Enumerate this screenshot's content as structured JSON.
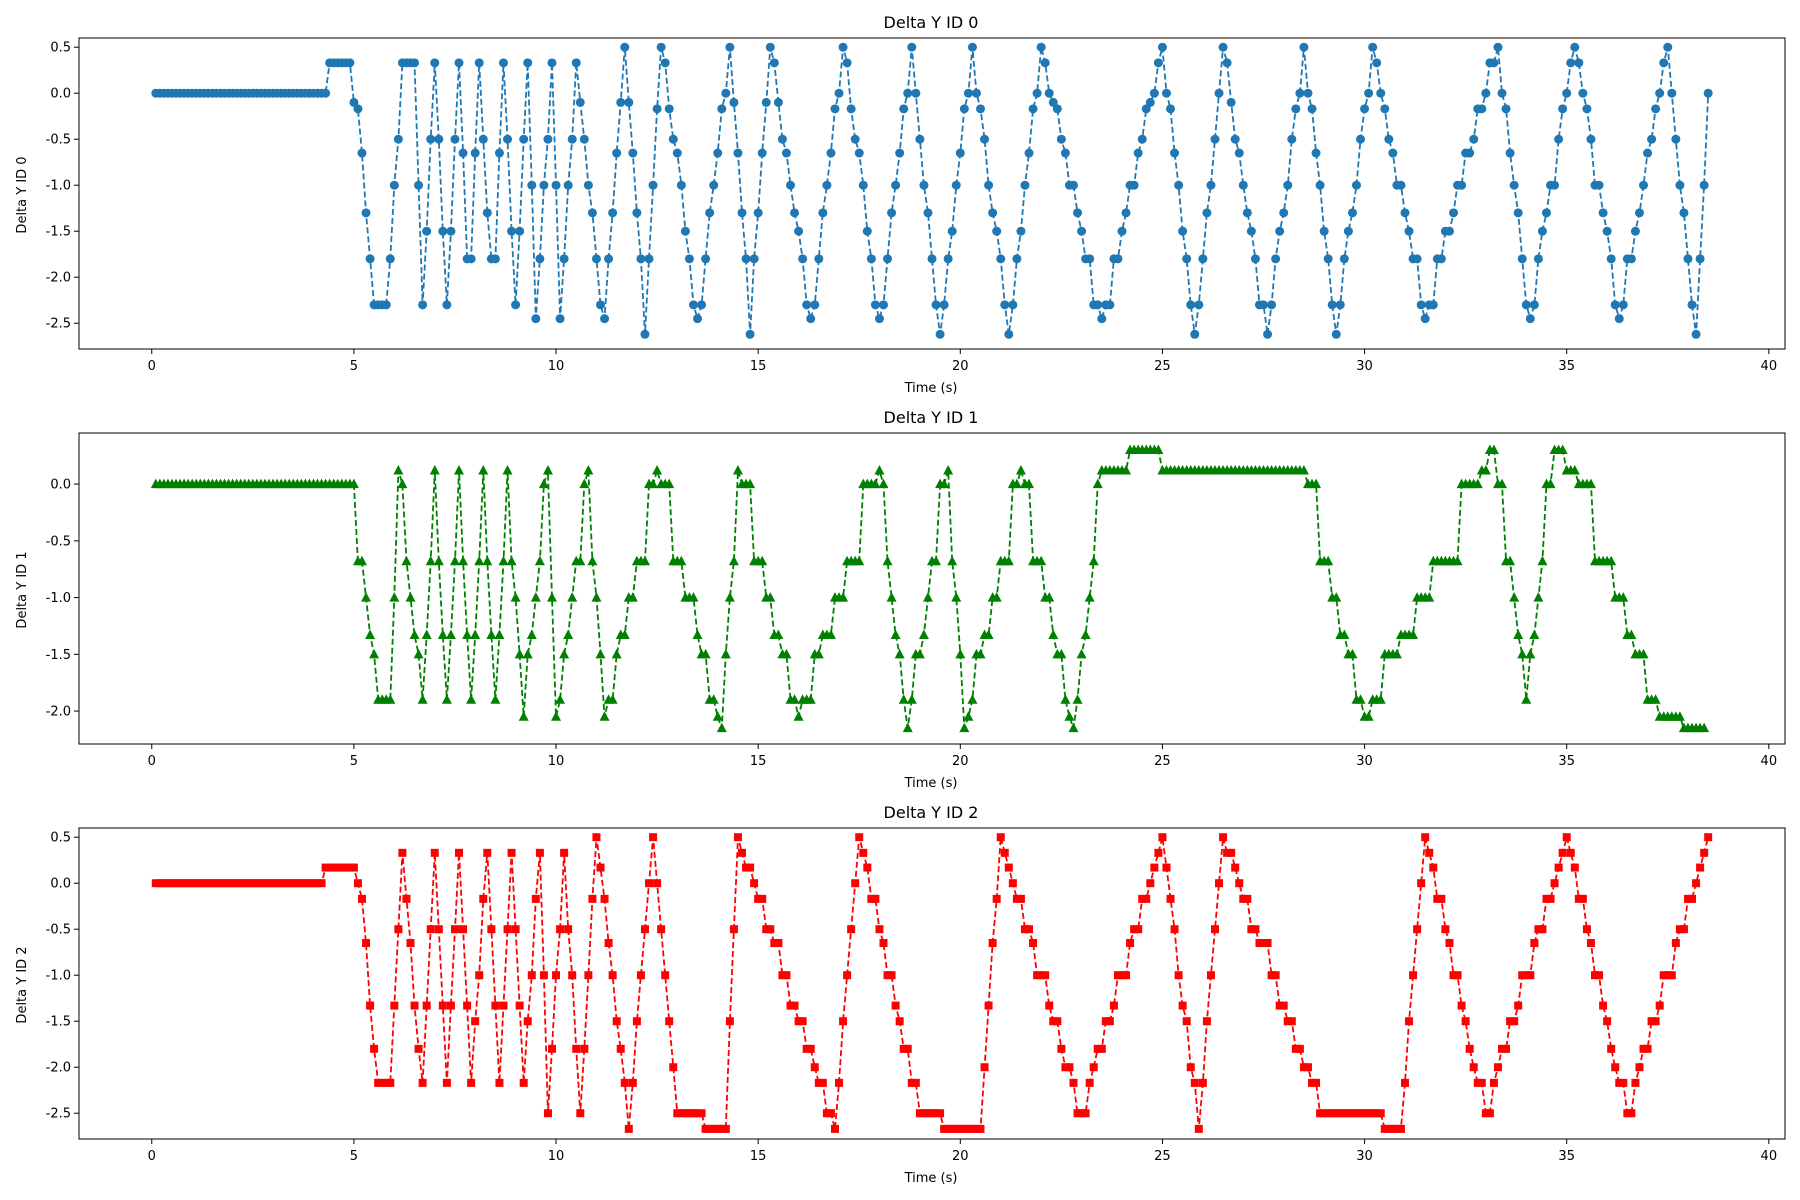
{
  "chart_data": [
    {
      "type": "line",
      "title": "Delta Y ID 0",
      "xlabel": "Time (s)",
      "ylabel": "Delta Y ID 0",
      "xlim": [
        -1.8,
        40.4
      ],
      "ylim": [
        -2.78,
        0.6
      ],
      "xticks": [
        "0",
        "5",
        "10",
        "15",
        "20",
        "25",
        "30",
        "35",
        "40"
      ],
      "yticks": [
        "0.5",
        "0.0",
        "-0.5",
        "-1.0",
        "-1.5",
        "-2.0",
        "-2.5"
      ],
      "grid": false,
      "series": [
        {
          "color": "#1f77b4",
          "marker": "circle",
          "linestyle": "dashed",
          "x_start": 0.1,
          "x_end": 38.5,
          "sample_step": 0.1,
          "knots": [
            [
              0.1,
              0.0
            ],
            [
              4.3,
              0.0
            ],
            [
              4.35,
              0.17
            ],
            [
              4.9,
              0.17
            ],
            [
              5.1,
              -0.3
            ],
            [
              5.5,
              -2.3
            ],
            [
              5.8,
              -2.3
            ],
            [
              6.2,
              0.17
            ],
            [
              6.5,
              0.17
            ],
            [
              6.7,
              -2.3
            ],
            [
              7.0,
              0.33
            ],
            [
              7.3,
              -2.3
            ],
            [
              7.6,
              0.33
            ],
            [
              7.85,
              -2.3
            ],
            [
              8.1,
              0.33
            ],
            [
              8.45,
              -2.3
            ],
            [
              8.7,
              0.33
            ],
            [
              9.0,
              -2.3
            ],
            [
              9.3,
              0.33
            ],
            [
              9.5,
              -2.45
            ],
            [
              9.9,
              0.33
            ],
            [
              10.1,
              -2.45
            ],
            [
              10.5,
              0.33
            ],
            [
              11.2,
              -2.45
            ],
            [
              11.7,
              0.5
            ],
            [
              12.2,
              -2.62
            ],
            [
              12.6,
              0.5
            ],
            [
              13.5,
              -2.45
            ],
            [
              14.3,
              0.5
            ],
            [
              14.8,
              -2.62
            ],
            [
              15.3,
              0.5
            ],
            [
              16.3,
              -2.45
            ],
            [
              17.1,
              0.5
            ],
            [
              18.0,
              -2.45
            ],
            [
              18.8,
              0.5
            ],
            [
              19.5,
              -2.62
            ],
            [
              20.3,
              0.5
            ],
            [
              21.2,
              -2.62
            ],
            [
              22.0,
              0.5
            ],
            [
              23.5,
              -2.45
            ],
            [
              25.0,
              0.5
            ],
            [
              25.8,
              -2.62
            ],
            [
              26.5,
              0.5
            ],
            [
              27.6,
              -2.62
            ],
            [
              28.5,
              0.5
            ],
            [
              29.3,
              -2.62
            ],
            [
              30.2,
              0.5
            ],
            [
              31.5,
              -2.45
            ],
            [
              33.3,
              0.5
            ],
            [
              34.1,
              -2.45
            ],
            [
              35.2,
              0.5
            ],
            [
              36.3,
              -2.45
            ],
            [
              37.5,
              0.5
            ],
            [
              38.2,
              -2.62
            ],
            [
              38.5,
              0.0
            ]
          ],
          "levels": [
            0.5,
            0.33,
            0.0,
            -0.1,
            -0.17,
            -0.5,
            -0.65,
            -1.0,
            -1.3,
            -1.5,
            -1.8,
            -2.3,
            -2.45,
            -2.62
          ]
        }
      ]
    },
    {
      "type": "line",
      "title": "Delta Y ID 1",
      "xlabel": "Time (s)",
      "ylabel": "Delta Y ID 1",
      "xlim": [
        -1.8,
        40.4
      ],
      "ylim": [
        -2.29,
        0.45
      ],
      "xticks": [
        "0",
        "5",
        "10",
        "15",
        "20",
        "25",
        "30",
        "35",
        "40"
      ],
      "yticks": [
        "0.0",
        "-0.5",
        "-1.0",
        "-1.5",
        "-2.0"
      ],
      "grid": false,
      "series": [
        {
          "color": "#008000",
          "marker": "triangle",
          "linestyle": "dashed",
          "x_start": 0.1,
          "x_end": 38.4,
          "sample_step": 0.1,
          "knots": [
            [
              0.1,
              0.0
            ],
            [
              5.0,
              0.0
            ],
            [
              5.2,
              -0.7
            ],
            [
              5.6,
              -1.9
            ],
            [
              5.9,
              -1.9
            ],
            [
              6.1,
              0.12
            ],
            [
              6.7,
              -1.9
            ],
            [
              7.0,
              0.12
            ],
            [
              7.3,
              -1.9
            ],
            [
              7.6,
              0.12
            ],
            [
              7.9,
              -1.9
            ],
            [
              8.2,
              0.12
            ],
            [
              8.5,
              -1.9
            ],
            [
              8.8,
              0.12
            ],
            [
              9.2,
              -2.05
            ],
            [
              9.8,
              0.12
            ],
            [
              10.0,
              -2.05
            ],
            [
              10.8,
              0.12
            ],
            [
              11.2,
              -2.05
            ],
            [
              12.5,
              0.12
            ],
            [
              14.1,
              -2.15
            ],
            [
              14.5,
              0.12
            ],
            [
              16.0,
              -2.05
            ],
            [
              18.0,
              0.12
            ],
            [
              18.7,
              -2.15
            ],
            [
              19.7,
              0.12
            ],
            [
              20.1,
              -2.15
            ],
            [
              21.5,
              0.12
            ],
            [
              22.8,
              -2.15
            ],
            [
              23.5,
              0.12
            ],
            [
              24.8,
              0.3
            ],
            [
              25.2,
              0.12
            ],
            [
              28.5,
              0.12
            ],
            [
              30.0,
              -2.05
            ],
            [
              33.2,
              0.3
            ],
            [
              34.0,
              -1.9
            ],
            [
              34.7,
              0.3
            ],
            [
              35.2,
              0.12
            ],
            [
              37.3,
              -2.05
            ],
            [
              38.4,
              -2.15
            ]
          ],
          "levels": [
            0.3,
            0.12,
            0.0,
            -0.68,
            -1.0,
            -1.33,
            -1.5,
            -1.9,
            -2.05,
            -2.15
          ]
        }
      ]
    },
    {
      "type": "line",
      "title": "Delta Y ID 2",
      "xlabel": "Time (s)",
      "ylabel": "Delta Y ID 2",
      "xlim": [
        -1.8,
        40.4
      ],
      "ylim": [
        -2.78,
        0.6
      ],
      "xticks": [
        "0",
        "5",
        "10",
        "15",
        "20",
        "25",
        "30",
        "35",
        "40"
      ],
      "yticks": [
        "0.5",
        "0.0",
        "-0.5",
        "-1.0",
        "-1.5",
        "-2.0",
        "-2.5"
      ],
      "grid": false,
      "series": [
        {
          "color": "#ff0000",
          "marker": "square",
          "linestyle": "dashed",
          "x_start": 0.1,
          "x_end": 38.5,
          "sample_step": 0.1,
          "knots": [
            [
              0.1,
              0.0
            ],
            [
              4.2,
              0.0
            ],
            [
              4.3,
              0.17
            ],
            [
              5.0,
              0.17
            ],
            [
              5.2,
              -0.3
            ],
            [
              5.6,
              -2.17
            ],
            [
              5.9,
              -2.17
            ],
            [
              6.2,
              0.33
            ],
            [
              6.7,
              -2.17
            ],
            [
              7.0,
              0.33
            ],
            [
              7.3,
              -2.17
            ],
            [
              7.6,
              0.33
            ],
            [
              7.9,
              -2.17
            ],
            [
              8.3,
              0.33
            ],
            [
              8.6,
              -2.17
            ],
            [
              8.9,
              0.33
            ],
            [
              9.2,
              -2.17
            ],
            [
              9.6,
              0.33
            ],
            [
              9.8,
              -2.5
            ],
            [
              10.2,
              0.33
            ],
            [
              10.6,
              -2.5
            ],
            [
              11.0,
              0.5
            ],
            [
              11.8,
              -2.67
            ],
            [
              12.4,
              0.5
            ],
            [
              13.0,
              -2.5
            ],
            [
              14.2,
              -2.67
            ],
            [
              14.5,
              0.5
            ],
            [
              16.9,
              -2.67
            ],
            [
              17.5,
              0.5
            ],
            [
              19.0,
              -2.5
            ],
            [
              20.1,
              -2.67
            ],
            [
              20.5,
              -2.67
            ],
            [
              21.0,
              0.5
            ],
            [
              23.0,
              -2.5
            ],
            [
              25.0,
              0.5
            ],
            [
              25.9,
              -2.67
            ],
            [
              26.5,
              0.5
            ],
            [
              29.0,
              -2.5
            ],
            [
              30.0,
              -2.5
            ],
            [
              30.9,
              -2.67
            ],
            [
              31.5,
              0.5
            ],
            [
              33.0,
              -2.5
            ],
            [
              35.0,
              0.5
            ],
            [
              36.5,
              -2.5
            ],
            [
              38.5,
              0.5
            ]
          ],
          "levels": [
            0.5,
            0.33,
            0.17,
            0.0,
            -0.17,
            -0.5,
            -0.65,
            -1.0,
            -1.33,
            -1.5,
            -1.8,
            -2.0,
            -2.17,
            -2.5,
            -2.67
          ]
        }
      ]
    }
  ]
}
